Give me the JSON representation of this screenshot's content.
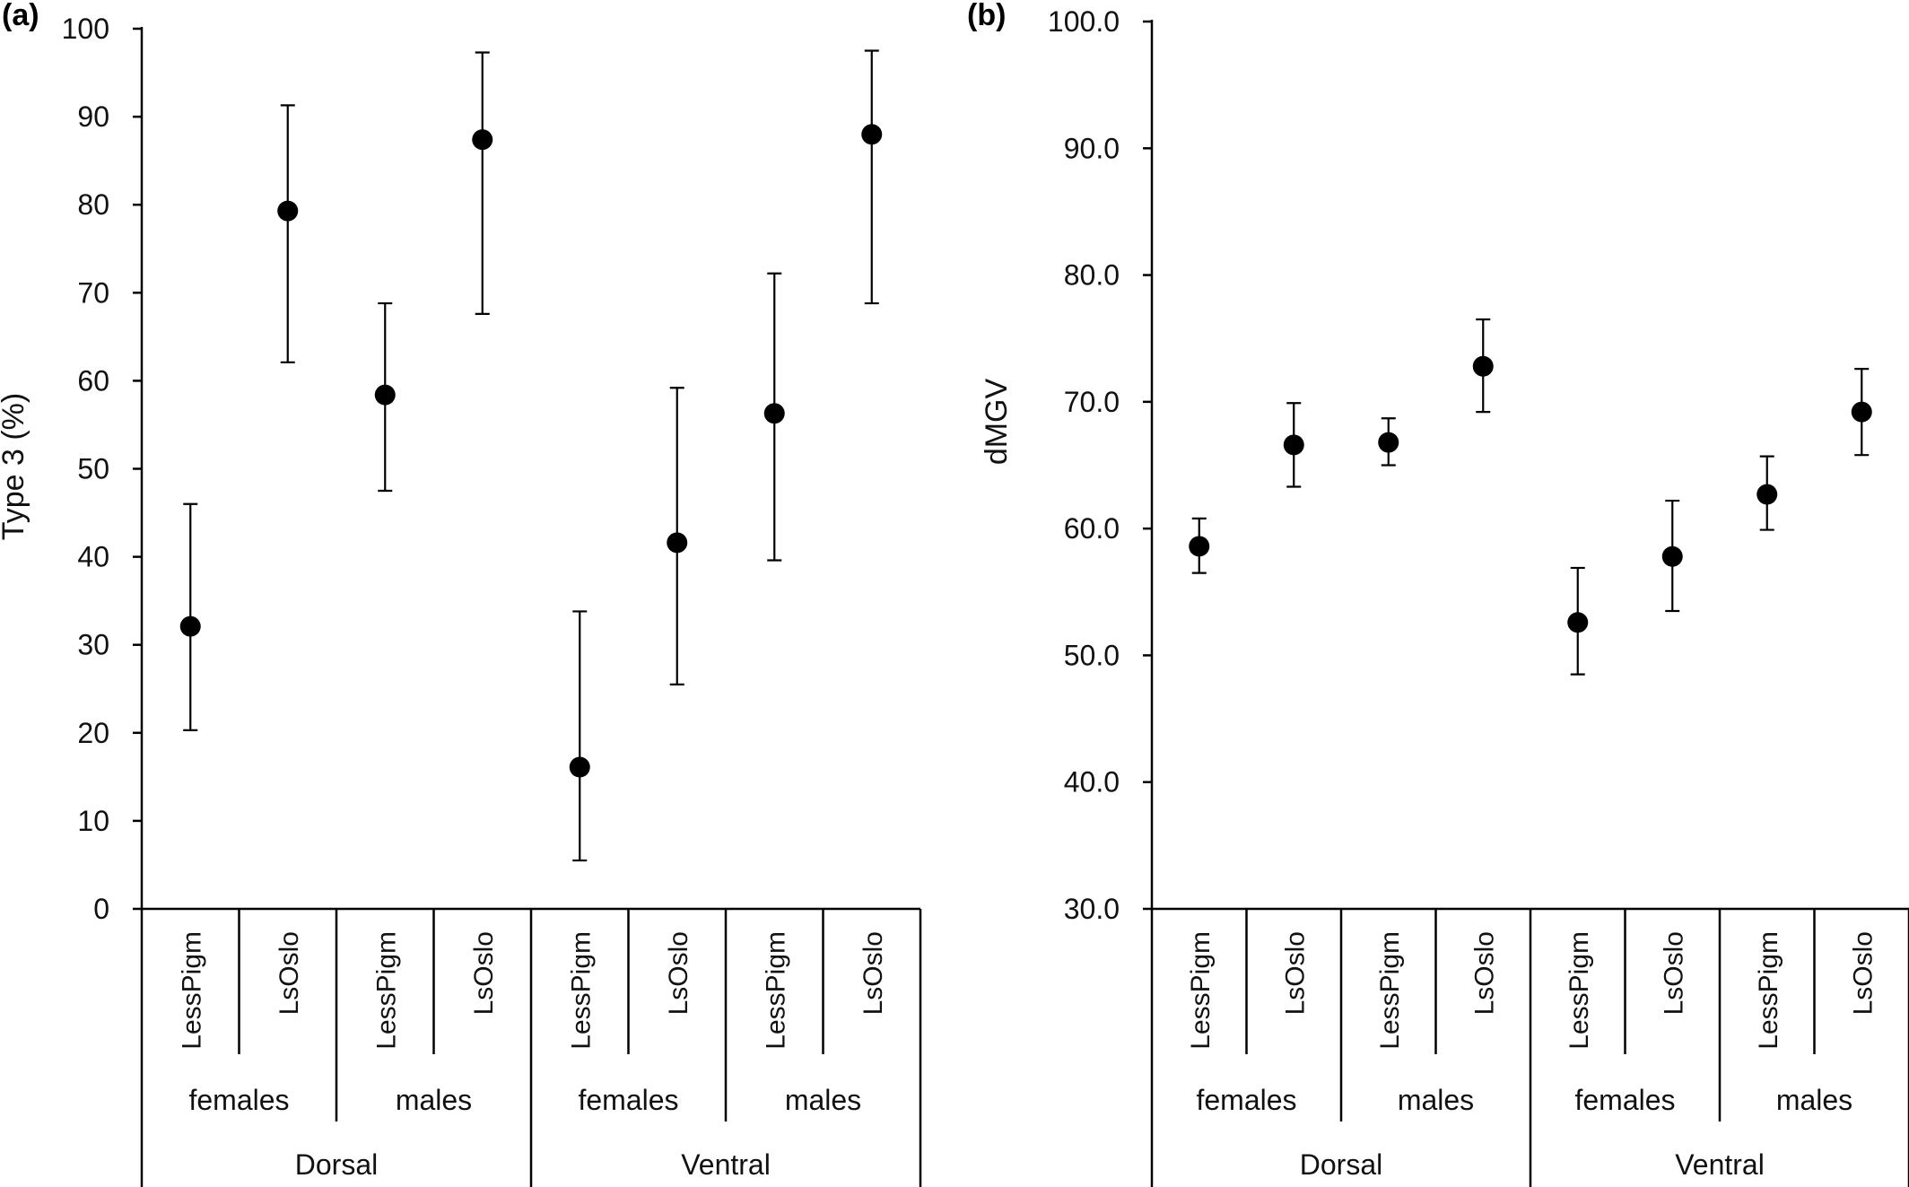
{
  "chart_data": [
    {
      "type": "scatter",
      "panel_label": "(a)",
      "title": "",
      "xlabel": "",
      "ylabel": "Type 3 (%)",
      "ylim": [
        0,
        100
      ],
      "yticks": [
        "0",
        "10",
        "20",
        "30",
        "40",
        "50",
        "60",
        "70",
        "80",
        "90",
        "100"
      ],
      "grid": false,
      "categories": [
        "LessPigm",
        "LsOslo",
        "LessPigm",
        "LsOslo",
        "LessPigm",
        "LsOslo",
        "LessPigm",
        "LsOslo"
      ],
      "sex_groups": [
        "females",
        "males",
        "females",
        "males"
      ],
      "region_groups": [
        "Dorsal",
        "Ventral"
      ],
      "values": [
        32.1,
        79.3,
        58.4,
        87.4,
        16.1,
        41.6,
        56.3,
        88.0
      ],
      "err_low": [
        20.3,
        62.1,
        47.5,
        67.6,
        5.5,
        25.5,
        39.6,
        68.8
      ],
      "err_high": [
        46.0,
        91.3,
        68.8,
        97.3,
        33.8,
        59.2,
        72.2,
        97.5
      ]
    },
    {
      "type": "scatter",
      "panel_label": "(b)",
      "title": "",
      "xlabel": "",
      "ylabel": "dMGV",
      "ylim": [
        30,
        100
      ],
      "yticks": [
        "30.0",
        "40.0",
        "50.0",
        "60.0",
        "70.0",
        "80.0",
        "90.0",
        "100.0"
      ],
      "grid": false,
      "categories": [
        "LessPigm",
        "LsOslo",
        "LessPigm",
        "LsOslo",
        "LessPigm",
        "LsOslo",
        "LessPigm",
        "LsOslo"
      ],
      "sex_groups": [
        "females",
        "males",
        "females",
        "males"
      ],
      "region_groups": [
        "Dorsal",
        "Ventral"
      ],
      "values": [
        58.6,
        66.6,
        66.8,
        72.8,
        52.6,
        57.8,
        62.7,
        69.2
      ],
      "err_low": [
        56.5,
        63.3,
        65.0,
        69.2,
        48.5,
        53.5,
        59.9,
        65.8
      ],
      "err_high": [
        60.8,
        69.9,
        68.7,
        76.5,
        56.9,
        62.2,
        65.7,
        72.6
      ]
    }
  ]
}
